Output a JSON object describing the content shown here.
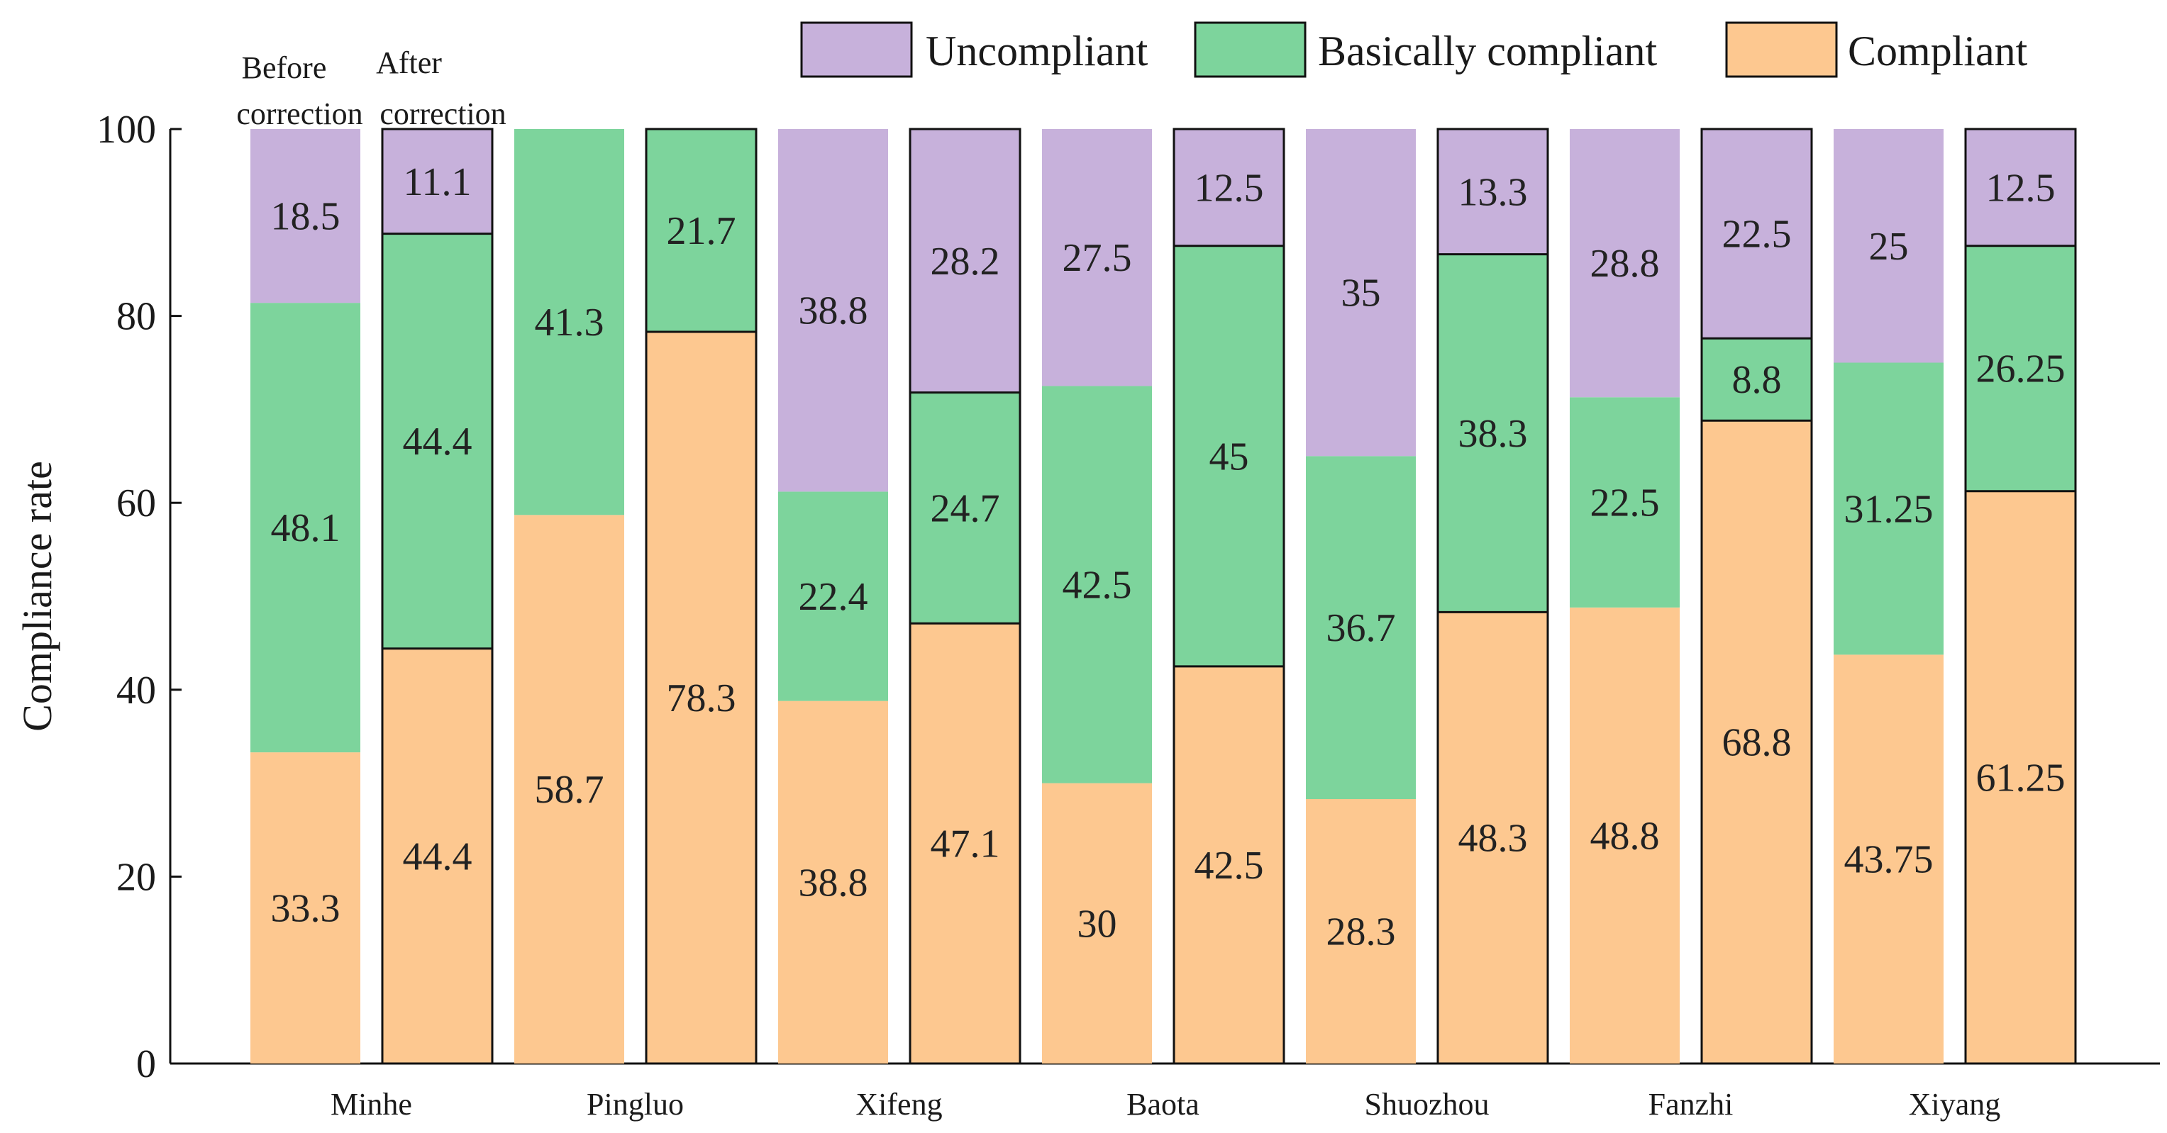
{
  "chart_data": {
    "type": "bar",
    "stacked": true,
    "title": "",
    "xlabel": "",
    "ylabel": "Compliance rate",
    "ylim": [
      0,
      100
    ],
    "yticks": [
      0,
      20,
      40,
      60,
      80,
      100
    ],
    "legend_position": "top-right",
    "categories": [
      "Minhe",
      "Pingluo",
      "Xifeng",
      "Baota",
      "Shuozhou",
      "Fanzhi",
      "Xiyang"
    ],
    "bar_captions": {
      "before": [
        "Before",
        "correction"
      ],
      "after": [
        "After",
        "correction"
      ]
    },
    "colors": {
      "compliant": "#fdc890",
      "basically_compliant": "#7dd49c",
      "uncompliant": "#c7b1db"
    },
    "bars": [
      {
        "category": "Minhe",
        "phase": "Before correction",
        "compliant": "33.3",
        "basically_compliant": "48.1",
        "uncompliant": "18.5"
      },
      {
        "category": "Minhe",
        "phase": "After correction",
        "compliant": "44.4",
        "basically_compliant": "44.4",
        "uncompliant": "11.1"
      },
      {
        "category": "Pingluo",
        "phase": "Before correction",
        "compliant": "58.7",
        "basically_compliant": "41.3",
        "uncompliant": null
      },
      {
        "category": "Pingluo",
        "phase": "After correction",
        "compliant": "78.3",
        "basically_compliant": "21.7",
        "uncompliant": null
      },
      {
        "category": "Xifeng",
        "phase": "Before correction",
        "compliant": "38.8",
        "basically_compliant": "22.4",
        "uncompliant": "38.8"
      },
      {
        "category": "Xifeng",
        "phase": "After correction",
        "compliant": "47.1",
        "basically_compliant": "24.7",
        "uncompliant": "28.2"
      },
      {
        "category": "Baota",
        "phase": "Before correction",
        "compliant": "30",
        "basically_compliant": "42.5",
        "uncompliant": "27.5"
      },
      {
        "category": "Baota",
        "phase": "After correction",
        "compliant": "42.5",
        "basically_compliant": "45",
        "uncompliant": "12.5"
      },
      {
        "category": "Shuozhou",
        "phase": "Before correction",
        "compliant": "28.3",
        "basically_compliant": "36.7",
        "uncompliant": "35"
      },
      {
        "category": "Shuozhou",
        "phase": "After correction",
        "compliant": "48.3",
        "basically_compliant": "38.3",
        "uncompliant": "13.3"
      },
      {
        "category": "Fanzhi",
        "phase": "Before correction",
        "compliant": "48.8",
        "basically_compliant": "22.5",
        "uncompliant": "28.8"
      },
      {
        "category": "Fanzhi",
        "phase": "After correction",
        "compliant": "68.8",
        "basically_compliant": "8.8",
        "uncompliant": "22.5"
      },
      {
        "category": "Xiyang",
        "phase": "Before correction",
        "compliant": "43.75",
        "basically_compliant": "31.25",
        "uncompliant": "25"
      },
      {
        "category": "Xiyang",
        "phase": "After correction",
        "compliant": "61.25",
        "basically_compliant": "26.25",
        "uncompliant": "12.5"
      }
    ],
    "legend": [
      {
        "key": "uncompliant",
        "label": "Uncompliant"
      },
      {
        "key": "basically_compliant",
        "label": "Basically compliant"
      },
      {
        "key": "compliant",
        "label": "Compliant"
      }
    ]
  }
}
